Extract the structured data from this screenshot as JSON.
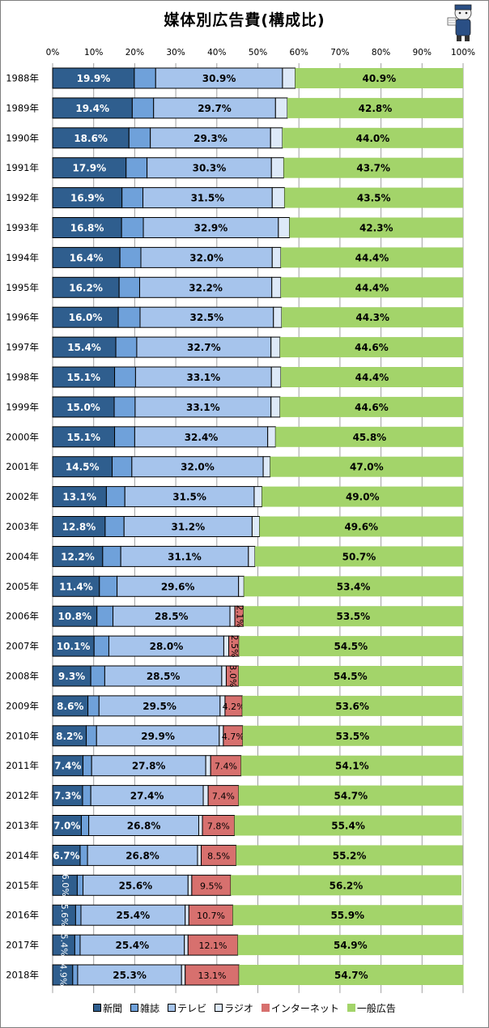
{
  "chart_data": {
    "type": "stacked-bar-horizontal",
    "title": "媒体別広告費(構成比)",
    "xlabel": "",
    "ylabel": "",
    "xlim": [
      0,
      100
    ],
    "x_ticks": [
      "0%",
      "10%",
      "20%",
      "30%",
      "40%",
      "50%",
      "60%",
      "70%",
      "80%",
      "90%",
      "100%"
    ],
    "gridlines": true,
    "legend_position": "bottom",
    "categories": [
      "1988年",
      "1989年",
      "1990年",
      "1991年",
      "1992年",
      "1993年",
      "1994年",
      "1995年",
      "1996年",
      "1997年",
      "1998年",
      "1999年",
      "2000年",
      "2001年",
      "2002年",
      "2003年",
      "2004年",
      "2005年",
      "2006年",
      "2007年",
      "2008年",
      "2009年",
      "2010年",
      "2011年",
      "2012年",
      "2013年",
      "2014年",
      "2015年",
      "2016年",
      "2017年",
      "2018年"
    ],
    "series": [
      {
        "name": "新聞",
        "color": "#2f5e8e",
        "values": [
          19.9,
          19.4,
          18.6,
          17.9,
          16.9,
          16.8,
          16.4,
          16.2,
          16.0,
          15.4,
          15.1,
          15.0,
          15.1,
          14.5,
          13.1,
          12.8,
          12.2,
          11.4,
          10.8,
          10.1,
          9.3,
          8.6,
          8.2,
          7.4,
          7.3,
          7.0,
          6.7,
          6.0,
          5.6,
          5.4,
          4.9
        ]
      },
      {
        "name": "雑誌",
        "color": "#6fa1da",
        "values": [
          5.2,
          5.2,
          5.2,
          5.1,
          5.1,
          5.3,
          5.1,
          5.0,
          5.3,
          5.1,
          5.1,
          5.1,
          4.9,
          4.8,
          4.5,
          4.6,
          4.4,
          4.3,
          3.9,
          3.6,
          3.4,
          2.7,
          2.5,
          2.1,
          2.0,
          1.8,
          1.8,
          1.4,
          1.3,
          1.3,
          1.2
        ]
      },
      {
        "name": "テレビ",
        "color": "#a6c4ec",
        "values": [
          30.9,
          29.7,
          29.3,
          30.3,
          31.5,
          32.9,
          32.0,
          32.2,
          32.5,
          32.7,
          33.1,
          33.1,
          32.4,
          32.0,
          31.5,
          31.2,
          31.1,
          29.6,
          28.5,
          28.0,
          28.5,
          29.5,
          29.9,
          27.8,
          27.4,
          26.8,
          26.8,
          25.6,
          25.4,
          25.4,
          25.3
        ]
      },
      {
        "name": "ラジオ",
        "color": "#dde9f8",
        "values": [
          3.1,
          2.9,
          2.9,
          3.0,
          3.0,
          2.7,
          2.1,
          2.2,
          2.0,
          2.2,
          2.3,
          2.2,
          1.9,
          1.7,
          1.9,
          1.8,
          1.6,
          1.3,
          1.2,
          1.2,
          1.1,
          1.2,
          1.0,
          1.2,
          1.2,
          0.9,
          0.9,
          0.9,
          0.9,
          0.9,
          0.9
        ]
      },
      {
        "name": "インターネット",
        "color": "#d7706e",
        "values": [
          0,
          0,
          0,
          0,
          0,
          0,
          0,
          0,
          0,
          0,
          0,
          0,
          0,
          0,
          0,
          0,
          0,
          0,
          2.1,
          2.5,
          3.0,
          4.2,
          4.7,
          7.4,
          7.4,
          7.8,
          8.5,
          9.5,
          10.7,
          12.1,
          13.1
        ]
      },
      {
        "name": "一般広告",
        "color": "#a3d46a",
        "values": [
          40.9,
          42.8,
          44.0,
          43.7,
          43.5,
          42.3,
          44.4,
          44.4,
          44.3,
          44.6,
          44.4,
          44.6,
          45.8,
          47.0,
          49.0,
          49.6,
          50.7,
          53.4,
          53.5,
          54.5,
          54.5,
          53.6,
          53.5,
          54.1,
          54.7,
          55.4,
          55.2,
          56.2,
          55.9,
          54.9,
          54.7
        ]
      }
    ],
    "data_labels": {
      "新聞": [
        "19.9%",
        "19.4%",
        "18.6%",
        "17.9%",
        "16.9%",
        "16.8%",
        "16.4%",
        "16.2%",
        "16.0%",
        "15.4%",
        "15.1%",
        "15.0%",
        "15.1%",
        "14.5%",
        "13.1%",
        "12.8%",
        "12.2%",
        "11.4%",
        "10.8%",
        "10.1%",
        "9.3%",
        "8.6%",
        "8.2%",
        "7.4%",
        "7.3%",
        "7.0%",
        "6.7%",
        "6.0%",
        "5.6%",
        "5.4%",
        "4.9%"
      ],
      "テレビ": [
        "30.9%",
        "29.7%",
        "29.3%",
        "30.3%",
        "31.5%",
        "32.9%",
        "32.0%",
        "32.2%",
        "32.5%",
        "32.7%",
        "33.1%",
        "33.1%",
        "32.4%",
        "32.0%",
        "31.5%",
        "31.2%",
        "31.1%",
        "29.6%",
        "28.5%",
        "28.0%",
        "28.5%",
        "29.5%",
        "29.9%",
        "27.8%",
        "27.4%",
        "26.8%",
        "26.8%",
        "25.6%",
        "25.4%",
        "25.4%",
        "25.3%"
      ],
      "インターネット": [
        "",
        "",
        "",
        "",
        "",
        "",
        "",
        "",
        "",
        "",
        "",
        "",
        "",
        "",
        "",
        "",
        "",
        "",
        "2.1%",
        "2.5%",
        "3.0%",
        "4.2%",
        "4.7%",
        "7.4%",
        "7.4%",
        "7.8%",
        "8.5%",
        "9.5%",
        "10.7%",
        "12.1%",
        "13.1%"
      ],
      "一般広告": [
        "40.9%",
        "42.8%",
        "44.0%",
        "43.7%",
        "43.5%",
        "42.3%",
        "44.4%",
        "44.4%",
        "44.3%",
        "44.6%",
        "44.4%",
        "44.6%",
        "45.8%",
        "47.0%",
        "49.0%",
        "49.6%",
        "50.7%",
        "53.4%",
        "53.5%",
        "54.5%",
        "54.5%",
        "53.6%",
        "53.5%",
        "54.1%",
        "54.7%",
        "55.4%",
        "55.2%",
        "56.2%",
        "55.9%",
        "54.9%",
        "54.7%"
      ]
    }
  }
}
